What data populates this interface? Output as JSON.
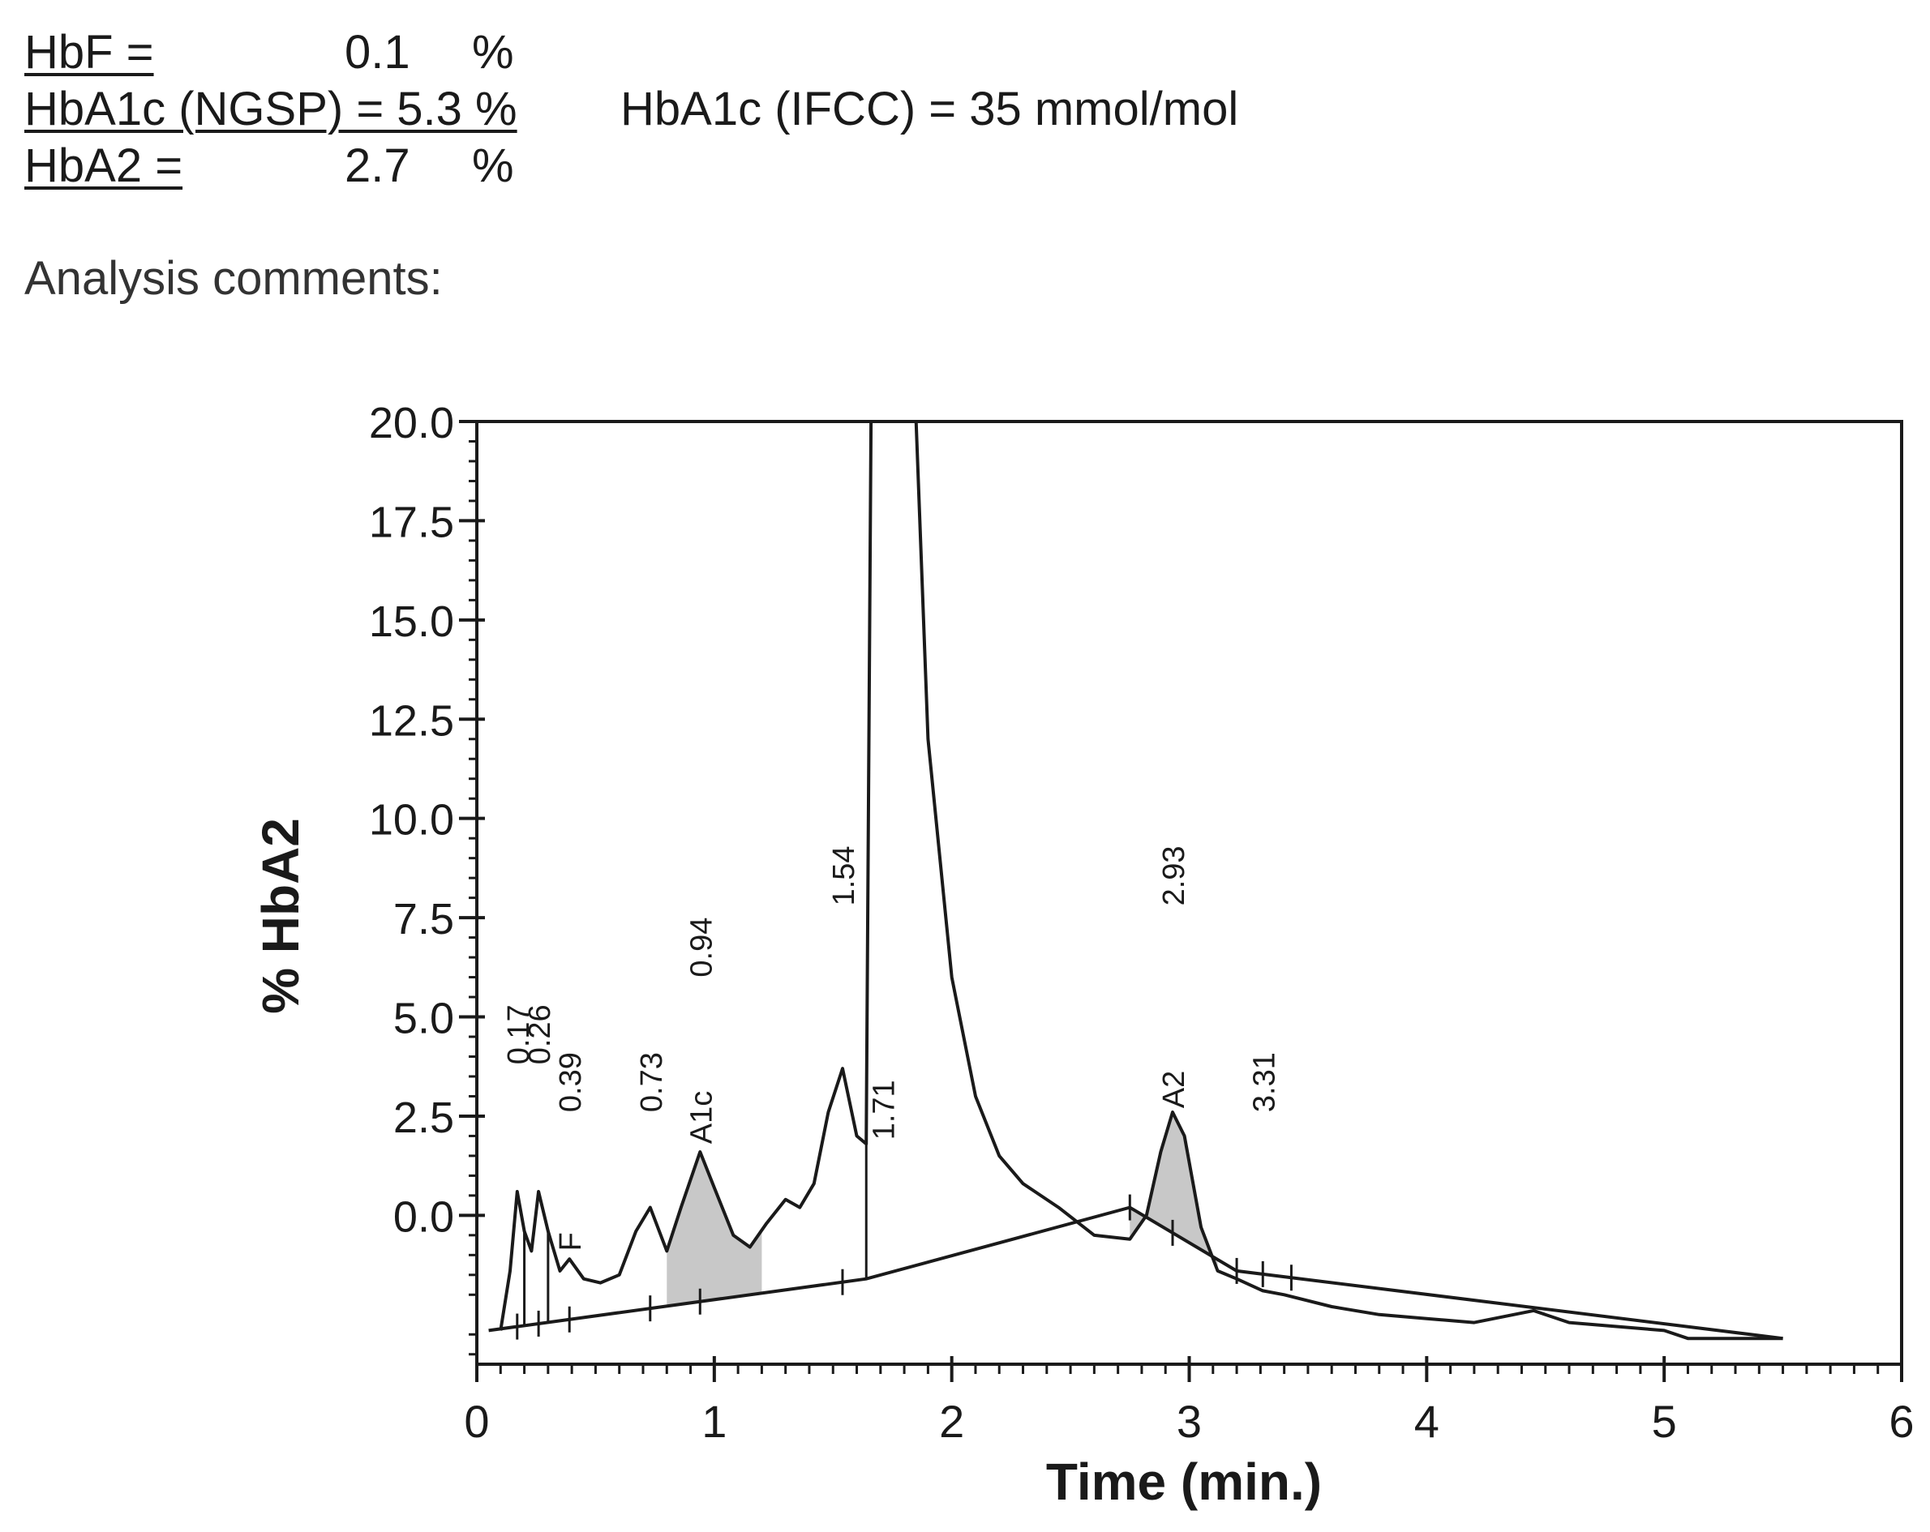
{
  "results": {
    "hbf": {
      "label": "HbF =",
      "value": "0.1",
      "unit": "%"
    },
    "hba1c": {
      "label": "HbA1c (NGSP) = 5.3  %",
      "ifcc": "HbA1c (IFCC) = 35  mmol/mol"
    },
    "hba2": {
      "label": "HbA2 =",
      "value": "2.7",
      "unit": "%"
    }
  },
  "comments_label": "Analysis comments:",
  "chart_data": {
    "type": "line",
    "title": "",
    "xlabel": "Time (min.)",
    "ylabel": "% HbA2",
    "xlim": [
      0,
      6
    ],
    "ylim": [
      -3.75,
      20.0
    ],
    "x_ticks": [
      0,
      1,
      2,
      3,
      4,
      5,
      6
    ],
    "x_tick_labels": [
      "0",
      "1",
      "2",
      "3",
      "4",
      "5",
      "6"
    ],
    "y_ticks": [
      0.0,
      2.5,
      5.0,
      7.5,
      10.0,
      12.5,
      15.0,
      17.5,
      20.0
    ],
    "y_tick_labels": [
      "0.0",
      "2.5",
      "5.0",
      "7.5",
      "10.0",
      "12.5",
      "15.0",
      "17.5",
      "20.0"
    ],
    "grid": false,
    "series": [
      {
        "x": [
          0.1,
          0.14,
          0.17,
          0.2,
          0.23,
          0.26,
          0.3,
          0.35,
          0.39,
          0.45,
          0.52,
          0.6,
          0.67,
          0.73,
          0.8,
          0.86,
          0.94,
          1.0,
          1.08,
          1.15,
          1.22,
          1.3,
          1.36,
          1.42,
          1.48,
          1.54,
          1.6,
          1.64,
          1.66,
          1.85,
          1.9,
          2.0,
          2.1,
          2.2,
          2.3,
          2.45,
          2.6,
          2.75,
          2.82,
          2.88,
          2.93,
          2.98,
          3.05,
          3.12,
          3.2,
          3.31,
          3.4,
          3.6,
          3.8,
          4.0,
          4.2,
          4.45,
          4.6,
          4.8,
          5.0,
          5.1,
          5.3,
          5.5
        ],
        "y": [
          -2.9,
          -1.4,
          0.6,
          -0.4,
          -0.9,
          0.6,
          -0.4,
          -1.4,
          -1.1,
          -1.6,
          -1.7,
          -1.5,
          -0.4,
          0.2,
          -0.9,
          0.2,
          1.6,
          0.7,
          -0.5,
          -0.8,
          -0.2,
          0.4,
          0.2,
          0.8,
          2.6,
          3.7,
          2.0,
          1.8,
          20.0,
          20.0,
          12.0,
          6.0,
          3.0,
          1.5,
          0.8,
          0.2,
          -0.5,
          -0.6,
          0.0,
          1.6,
          2.6,
          2.0,
          -0.3,
          -1.4,
          -1.6,
          -1.9,
          -2.0,
          -2.3,
          -2.5,
          -2.6,
          -2.7,
          -2.4,
          -2.7,
          -2.8,
          -2.9,
          -3.1,
          -3.1,
          -3.1
        ]
      }
    ],
    "baseline": {
      "x": [
        0.05,
        1.64,
        2.75,
        3.2,
        5.5
      ],
      "y": [
        -2.9,
        -1.6,
        0.2,
        -1.4,
        -3.1
      ]
    },
    "peak_labels": [
      {
        "text": "0.17",
        "x": 0.17
      },
      {
        "text": "0.26",
        "x": 0.26
      },
      {
        "text": "0.39",
        "x": 0.39
      },
      {
        "text": "0.73",
        "x": 0.73
      },
      {
        "text": "0.94",
        "x": 0.94
      },
      {
        "text": "1.54",
        "x": 1.54
      },
      {
        "text": "1.71",
        "x": 1.71
      },
      {
        "text": "2.93",
        "x": 2.93
      },
      {
        "text": "3.31",
        "x": 3.31
      },
      {
        "text": "F",
        "x": 0.39
      },
      {
        "text": "A1c",
        "x": 0.94
      },
      {
        "text": "A2",
        "x": 2.93
      }
    ],
    "shaded_peaks": [
      "A1c",
      "A2"
    ]
  }
}
